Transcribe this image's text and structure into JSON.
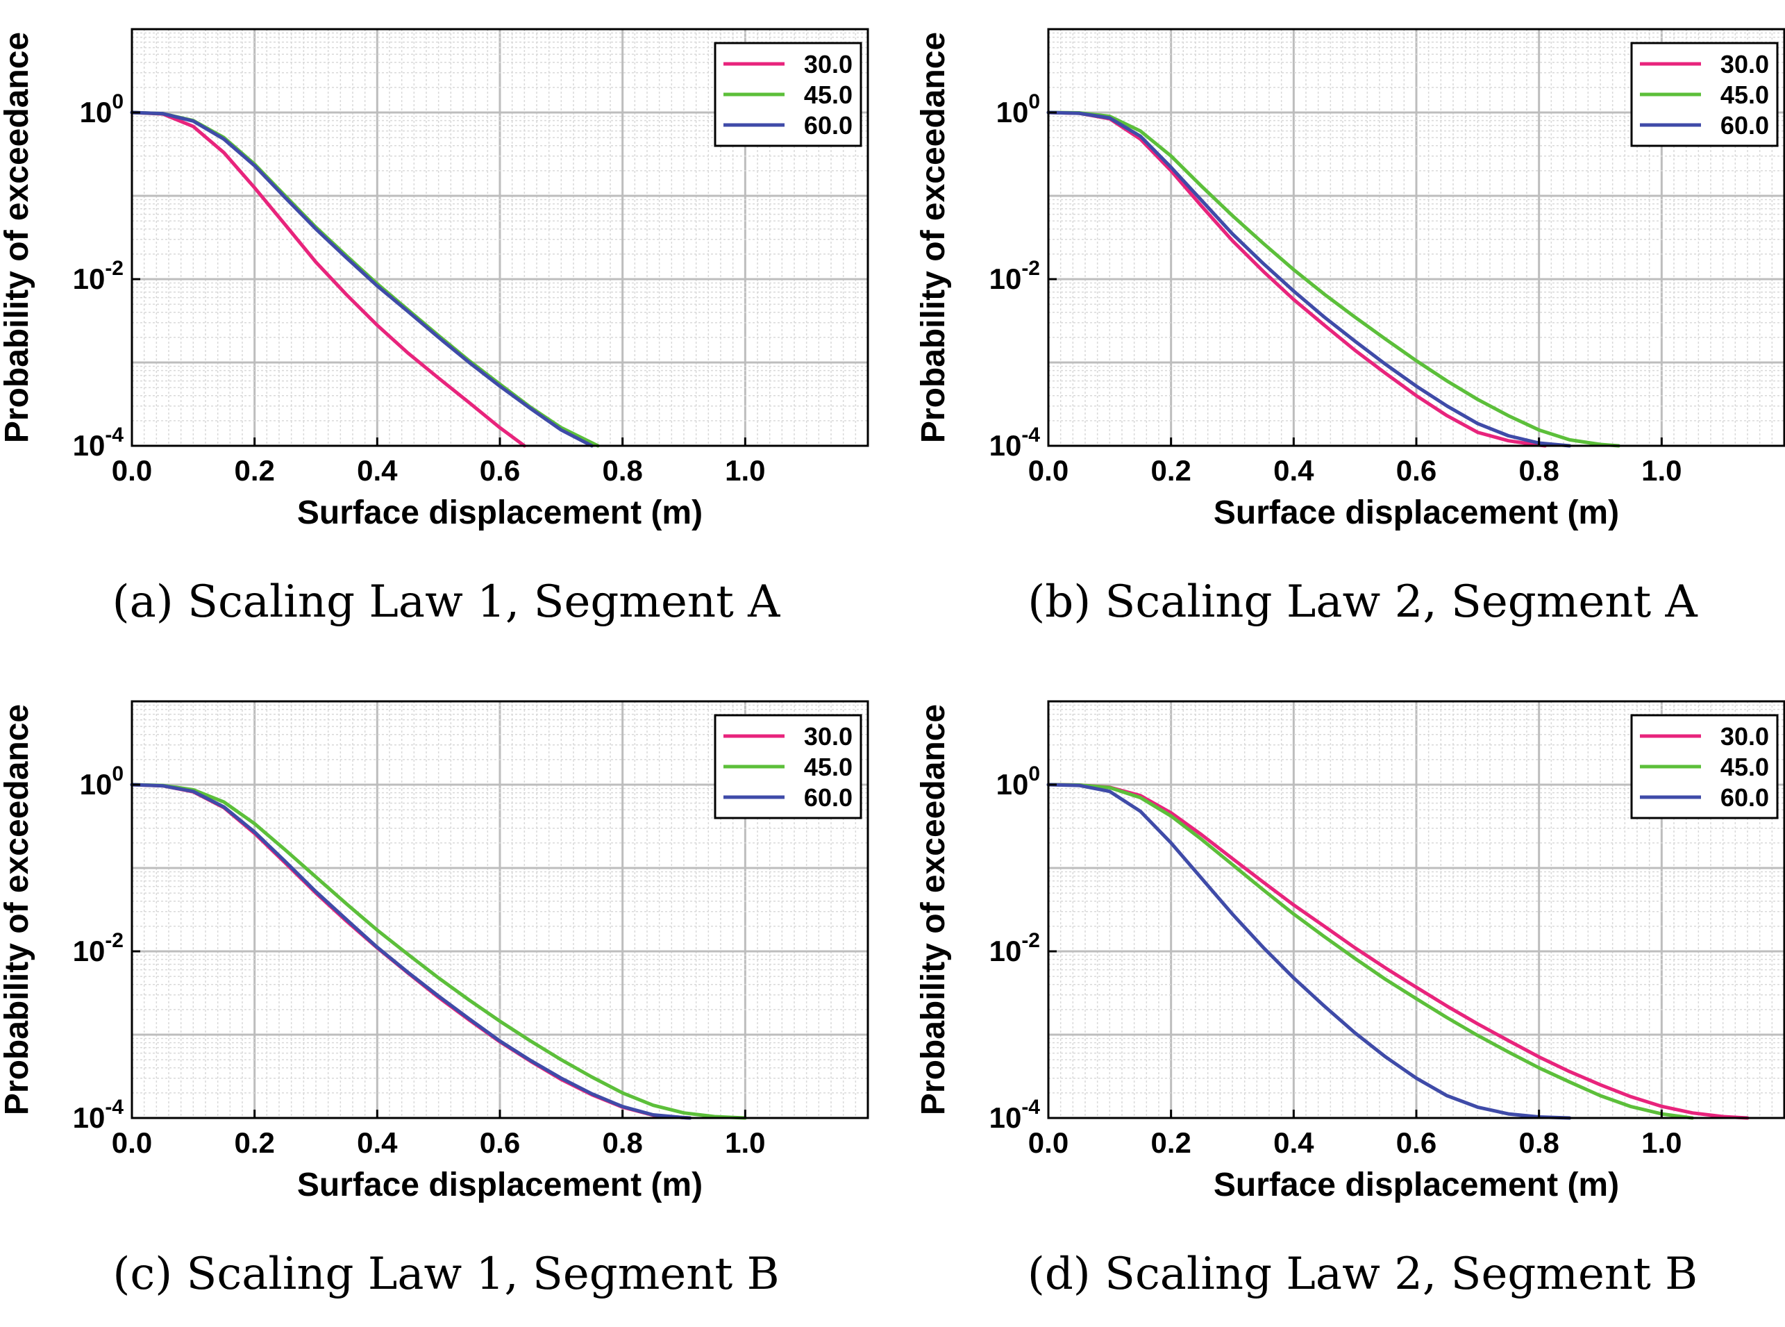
{
  "chart_data": [
    {
      "type": "line",
      "caption": "(a) Scaling Law 1, Segment A",
      "xlabel": "Surface displacement (m)",
      "ylabel": "Probability of exceedance",
      "xlim": [
        0,
        1.2
      ],
      "ylim": [
        0.0001,
        10
      ],
      "yscale": "log",
      "grid": true,
      "legend_position": "top-right",
      "xticks": [
        "0.0",
        "0.2",
        "0.4",
        "0.6",
        "0.8",
        "1.0"
      ],
      "series": [
        {
          "name": "30.0",
          "color": "#e8247c",
          "x": [
            0.0,
            0.05,
            0.1,
            0.15,
            0.2,
            0.25,
            0.3,
            0.35,
            0.4,
            0.45,
            0.5,
            0.55,
            0.6,
            0.64
          ],
          "y": [
            1.0,
            0.96,
            0.68,
            0.33,
            0.125,
            0.045,
            0.016,
            0.0065,
            0.0028,
            0.0013,
            0.00065,
            0.00033,
            0.000165,
            0.0001
          ]
        },
        {
          "name": "45.0",
          "color": "#5cbf3a",
          "x": [
            0.0,
            0.05,
            0.1,
            0.15,
            0.2,
            0.25,
            0.3,
            0.35,
            0.4,
            0.45,
            0.5,
            0.55,
            0.6,
            0.65,
            0.7,
            0.76
          ],
          "y": [
            1.0,
            0.97,
            0.8,
            0.5,
            0.24,
            0.1,
            0.042,
            0.019,
            0.0088,
            0.0043,
            0.0021,
            0.00105,
            0.00055,
            0.00029,
            0.000165,
            0.0001
          ]
        },
        {
          "name": "60.0",
          "color": "#3f4ba8",
          "x": [
            0.0,
            0.05,
            0.1,
            0.15,
            0.2,
            0.25,
            0.3,
            0.35,
            0.4,
            0.45,
            0.5,
            0.55,
            0.6,
            0.65,
            0.7,
            0.75
          ],
          "y": [
            1.0,
            0.97,
            0.79,
            0.48,
            0.23,
            0.095,
            0.04,
            0.018,
            0.0083,
            0.0041,
            0.002,
            0.001,
            0.00052,
            0.00028,
            0.000155,
            0.0001
          ]
        }
      ]
    },
    {
      "type": "line",
      "caption": "(b) Scaling Law 2, Segment A",
      "xlabel": "Surface displacement (m)",
      "ylabel": "Probability of exceedance",
      "xlim": [
        0,
        1.2
      ],
      "ylim": [
        0.0001,
        10
      ],
      "yscale": "log",
      "grid": true,
      "legend_position": "top-right",
      "xticks": [
        "0.0",
        "0.2",
        "0.4",
        "0.6",
        "0.8",
        "1.0"
      ],
      "series": [
        {
          "name": "30.0",
          "color": "#e8247c",
          "x": [
            0.0,
            0.05,
            0.1,
            0.15,
            0.2,
            0.25,
            0.3,
            0.35,
            0.4,
            0.45,
            0.5,
            0.55,
            0.6,
            0.65,
            0.7,
            0.75,
            0.8,
            0.81
          ],
          "y": [
            1.0,
            0.98,
            0.84,
            0.48,
            0.2,
            0.075,
            0.029,
            0.0125,
            0.0057,
            0.0028,
            0.0014,
            0.00074,
            0.0004,
            0.00023,
            0.000145,
            0.000115,
            0.000102,
            0.0001
          ]
        },
        {
          "name": "45.0",
          "color": "#5cbf3a",
          "x": [
            0.0,
            0.05,
            0.1,
            0.15,
            0.2,
            0.25,
            0.3,
            0.35,
            0.4,
            0.45,
            0.5,
            0.55,
            0.6,
            0.65,
            0.7,
            0.75,
            0.8,
            0.85,
            0.9,
            0.93
          ],
          "y": [
            1.0,
            0.99,
            0.9,
            0.6,
            0.3,
            0.13,
            0.058,
            0.027,
            0.013,
            0.0066,
            0.0035,
            0.0019,
            0.00105,
            0.0006,
            0.00036,
            0.00023,
            0.000155,
            0.000118,
            0.000104,
            0.0001
          ]
        },
        {
          "name": "60.0",
          "color": "#3f4ba8",
          "x": [
            0.0,
            0.05,
            0.1,
            0.15,
            0.2,
            0.25,
            0.3,
            0.35,
            0.4,
            0.45,
            0.5,
            0.55,
            0.6,
            0.65,
            0.7,
            0.75,
            0.8,
            0.85
          ],
          "y": [
            1.0,
            0.98,
            0.86,
            0.52,
            0.22,
            0.088,
            0.035,
            0.0155,
            0.0072,
            0.0035,
            0.0018,
            0.00095,
            0.00052,
            0.0003,
            0.000185,
            0.000132,
            0.000108,
            0.0001
          ]
        }
      ]
    },
    {
      "type": "line",
      "caption": "(c) Scaling Law 1, Segment B",
      "xlabel": "Surface displacement (m)",
      "ylabel": "Probability of exceedance",
      "xlim": [
        0,
        1.2
      ],
      "ylim": [
        0.0001,
        10
      ],
      "yscale": "log",
      "grid": true,
      "legend_position": "top-right",
      "xticks": [
        "0.0",
        "0.2",
        "0.4",
        "0.6",
        "0.8",
        "1.0"
      ],
      "series": [
        {
          "name": "30.0",
          "color": "#e8247c",
          "x": [
            0.0,
            0.05,
            0.1,
            0.15,
            0.2,
            0.25,
            0.3,
            0.35,
            0.4,
            0.45,
            0.5,
            0.55,
            0.6,
            0.65,
            0.7,
            0.75,
            0.8,
            0.85,
            0.9,
            0.91
          ],
          "y": [
            1.0,
            0.97,
            0.82,
            0.53,
            0.26,
            0.115,
            0.05,
            0.023,
            0.011,
            0.0055,
            0.0028,
            0.0015,
            0.00082,
            0.00048,
            0.00029,
            0.00019,
            0.000135,
            0.000108,
            0.000101,
            0.0001
          ]
        },
        {
          "name": "45.0",
          "color": "#5cbf3a",
          "x": [
            0.0,
            0.05,
            0.1,
            0.15,
            0.2,
            0.25,
            0.3,
            0.35,
            0.4,
            0.45,
            0.5,
            0.55,
            0.6,
            0.65,
            0.7,
            0.75,
            0.8,
            0.85,
            0.9,
            0.95,
            1.0
          ],
          "y": [
            1.0,
            0.98,
            0.87,
            0.62,
            0.34,
            0.165,
            0.078,
            0.037,
            0.018,
            0.0092,
            0.0048,
            0.0026,
            0.00145,
            0.00084,
            0.0005,
            0.00031,
            0.0002,
            0.000142,
            0.000115,
            0.000104,
            0.0001
          ]
        },
        {
          "name": "60.0",
          "color": "#3f4ba8",
          "x": [
            0.0,
            0.05,
            0.1,
            0.15,
            0.2,
            0.25,
            0.3,
            0.35,
            0.4,
            0.45,
            0.5,
            0.55,
            0.6,
            0.65,
            0.7,
            0.75,
            0.8,
            0.85,
            0.9,
            0.91
          ],
          "y": [
            1.0,
            0.97,
            0.83,
            0.54,
            0.27,
            0.12,
            0.052,
            0.024,
            0.0112,
            0.0056,
            0.0029,
            0.00155,
            0.00084,
            0.00049,
            0.0003,
            0.000195,
            0.000137,
            0.000109,
            0.000101,
            0.0001
          ]
        }
      ]
    },
    {
      "type": "line",
      "caption": "(d) Scaling Law 2, Segment B",
      "xlabel": "Surface displacement (m)",
      "ylabel": "Probability of exceedance",
      "xlim": [
        0,
        1.2
      ],
      "ylim": [
        0.0001,
        10
      ],
      "yscale": "log",
      "grid": true,
      "legend_position": "top-right",
      "xticks": [
        "0.0",
        "0.2",
        "0.4",
        "0.6",
        "0.8",
        "1.0"
      ],
      "series": [
        {
          "name": "30.0",
          "color": "#e8247c",
          "x": [
            0.0,
            0.05,
            0.1,
            0.15,
            0.2,
            0.25,
            0.3,
            0.35,
            0.4,
            0.45,
            0.5,
            0.55,
            0.6,
            0.65,
            0.7,
            0.75,
            0.8,
            0.85,
            0.9,
            0.95,
            1.0,
            1.05,
            1.1,
            1.14
          ],
          "y": [
            1.0,
            0.99,
            0.93,
            0.74,
            0.46,
            0.25,
            0.13,
            0.068,
            0.036,
            0.02,
            0.011,
            0.0063,
            0.0037,
            0.0022,
            0.00135,
            0.00085,
            0.00054,
            0.00036,
            0.00025,
            0.00018,
            0.000138,
            0.000115,
            0.000104,
            0.0001
          ]
        },
        {
          "name": "45.0",
          "color": "#5cbf3a",
          "x": [
            0.0,
            0.05,
            0.1,
            0.15,
            0.2,
            0.25,
            0.3,
            0.35,
            0.4,
            0.45,
            0.5,
            0.55,
            0.6,
            0.65,
            0.7,
            0.75,
            0.8,
            0.85,
            0.9,
            0.95,
            1.0,
            1.05
          ],
          "y": [
            1.0,
            0.99,
            0.92,
            0.7,
            0.42,
            0.22,
            0.11,
            0.055,
            0.028,
            0.015,
            0.0082,
            0.0046,
            0.0027,
            0.0016,
            0.00098,
            0.00062,
            0.0004,
            0.00027,
            0.000185,
            0.000137,
            0.000112,
            0.0001
          ]
        },
        {
          "name": "60.0",
          "color": "#3f4ba8",
          "x": [
            0.0,
            0.05,
            0.1,
            0.15,
            0.2,
            0.25,
            0.3,
            0.35,
            0.4,
            0.45,
            0.5,
            0.55,
            0.6,
            0.65,
            0.7,
            0.75,
            0.8,
            0.85
          ],
          "y": [
            1.0,
            0.98,
            0.83,
            0.48,
            0.2,
            0.075,
            0.028,
            0.0112,
            0.0048,
            0.0022,
            0.00105,
            0.00054,
            0.0003,
            0.000185,
            0.000135,
            0.000112,
            0.000103,
            0.0001
          ]
        }
      ]
    }
  ]
}
